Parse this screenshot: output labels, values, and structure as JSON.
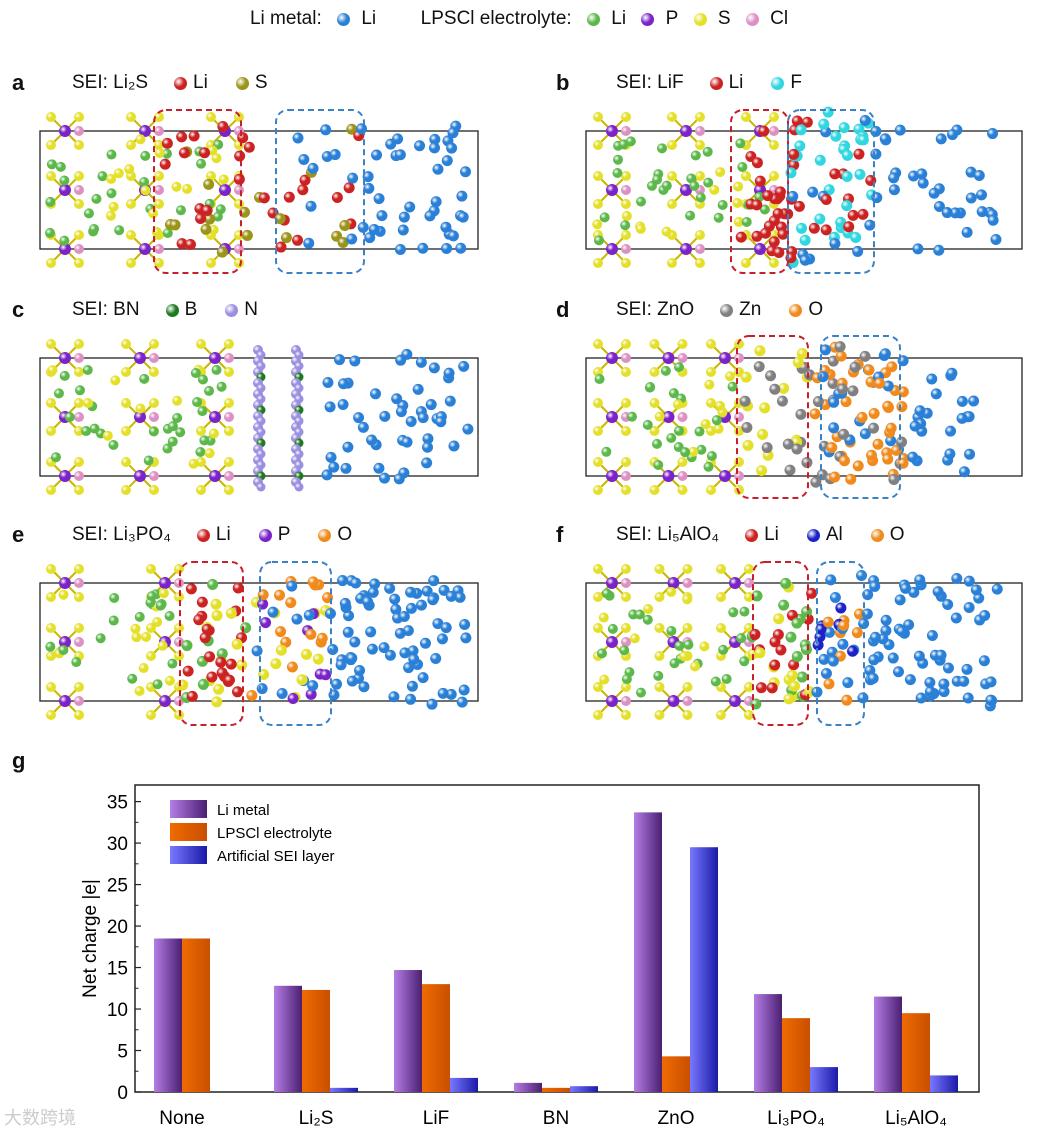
{
  "top_legend": {
    "li_metal_label": "Li metal:",
    "li_metal_items": [
      {
        "label": "Li",
        "color": "#2a80d6"
      }
    ],
    "lpscl_label": "LPSCl electrolyte:",
    "lpscl_items": [
      {
        "label": "Li",
        "color": "#5cb84a"
      },
      {
        "label": "P",
        "color": "#7b22c8"
      },
      {
        "label": "S",
        "color": "#e4e02a"
      },
      {
        "label": "Cl",
        "color": "#dc90c4"
      }
    ]
  },
  "panels": [
    {
      "letter": "a",
      "title": "SEI: Li₂S",
      "legend": [
        {
          "label": "Li",
          "color": "#cc2222"
        },
        {
          "label": "S",
          "color": "#9a9418"
        }
      ]
    },
    {
      "letter": "b",
      "title": "SEI: LiF",
      "legend": [
        {
          "label": "Li",
          "color": "#cc2222"
        },
        {
          "label": "F",
          "color": "#30d6e0"
        }
      ]
    },
    {
      "letter": "c",
      "title": "SEI: BN",
      "legend": [
        {
          "label": "B",
          "color": "#1f7a1f"
        },
        {
          "label": "N",
          "color": "#9a8fe0"
        }
      ]
    },
    {
      "letter": "d",
      "title": "SEI: ZnO",
      "legend": [
        {
          "label": "Zn",
          "color": "#808080"
        },
        {
          "label": "O",
          "color": "#f08a1c"
        }
      ]
    },
    {
      "letter": "e",
      "title": "SEI: Li₃PO₄",
      "legend": [
        {
          "label": "Li",
          "color": "#cc2222"
        },
        {
          "label": "P",
          "color": "#7b22c8"
        },
        {
          "label": "O",
          "color": "#f08a1c"
        }
      ]
    },
    {
      "letter": "f",
      "title": "SEI: Li₅AlO₄",
      "legend": [
        {
          "label": "Li",
          "color": "#cc2222"
        },
        {
          "label": "Al",
          "color": "#1a22c8"
        },
        {
          "label": "O",
          "color": "#f08a1c"
        }
      ]
    }
  ],
  "chart_panel_letter": "g",
  "chart_data": {
    "type": "bar",
    "title": "",
    "xlabel": "",
    "ylabel": "Net charge |e|",
    "ylim": [
      0,
      37
    ],
    "yticks": [
      0,
      5,
      10,
      15,
      20,
      25,
      30,
      35
    ],
    "categories": [
      "None",
      "Li₂S",
      "LiF",
      "BN",
      "ZnO",
      "Li₃PO₄",
      "Li₅AlO₄"
    ],
    "series": [
      {
        "name": "Li metal",
        "color_light": "#b57de6",
        "color_dark": "#4a1f70",
        "values": [
          18.5,
          12.8,
          14.7,
          1.1,
          33.7,
          11.8,
          11.5
        ]
      },
      {
        "name": "LPSCl electrolyte",
        "color_light": "#f06a00",
        "color_dark": "#c85000",
        "values": [
          18.5,
          12.3,
          13.0,
          0.5,
          4.3,
          8.9,
          9.5
        ]
      },
      {
        "name": "Artificial SEI layer",
        "color_light": "#7878ff",
        "color_dark": "#1a1aa8",
        "values": [
          null,
          0.5,
          1.7,
          0.7,
          29.5,
          3.0,
          2.0
        ]
      }
    ],
    "legend_position": "top-left",
    "grid": false
  },
  "watermark": "大数跨境"
}
